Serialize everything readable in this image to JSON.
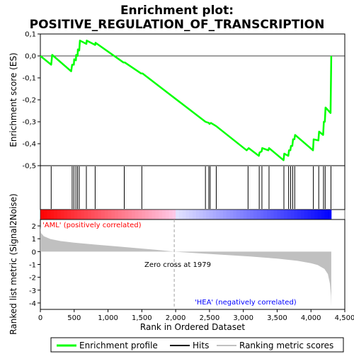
{
  "colors": {
    "enrichment": "#00ff00",
    "hits": "#000000",
    "metric_fill": "#c0c0c0",
    "positive_label": "#ff0000",
    "negative_label": "#0000ff",
    "zero_cross_line": "#a0a0a0"
  },
  "chart_data": {
    "type": "line",
    "title": "Enrichment plot: POSITIVE_REGULATION_OF_TRANSCRIPTION",
    "title_lines": [
      "Enrichment plot:",
      "POSITIVE_REGULATION_OF_TRANSCRIPTION"
    ],
    "xlabel": "Rank in Ordered Dataset",
    "xlim": [
      0,
      4500
    ],
    "x_ticks": [
      0,
      500,
      1000,
      1500,
      2000,
      2500,
      3000,
      3500,
      4000,
      4500
    ],
    "x_tick_labels": [
      "0",
      "500",
      "1,000",
      "1,500",
      "2,000",
      "2,500",
      "3,000",
      "3,500",
      "4,000",
      "4,500"
    ],
    "enrichment_panel": {
      "ylabel": "Enrichment score (ES)",
      "ylim": [
        -0.5,
        0.1
      ],
      "y_ticks": [
        0.1,
        0.0,
        -0.1,
        -0.2,
        -0.3,
        -0.4,
        -0.5
      ],
      "y_tick_labels": [
        "0,1",
        "0,0",
        "-0,1",
        "-0,2",
        "-0,3",
        "-0,4",
        "-0,5"
      ],
      "grid": "horizontal zero line"
    },
    "metric_panel": {
      "ylabel": "Ranked list metric (Signal2Noise)",
      "ylim": [
        -4.5,
        2.5
      ],
      "y_ticks": [
        2,
        1,
        0,
        -1,
        -2,
        -3,
        -4
      ],
      "y_tick_labels": [
        "2",
        "1",
        "0",
        "-1",
        "-2",
        "-3",
        "-4"
      ],
      "zero_cross_rank": 1979,
      "zero_cross_label": "Zero cross at 1979",
      "positive_label": "'AML' (positively correlated)",
      "negative_label": "'HEA' (negatively correlated)",
      "metric_curve": [
        [
          0,
          1.95
        ],
        [
          10,
          1.45
        ],
        [
          50,
          1.2
        ],
        [
          150,
          0.98
        ],
        [
          300,
          0.82
        ],
        [
          500,
          0.7
        ],
        [
          800,
          0.55
        ],
        [
          1100,
          0.42
        ],
        [
          1400,
          0.28
        ],
        [
          1700,
          0.14
        ],
        [
          1979,
          0.0
        ],
        [
          2300,
          -0.12
        ],
        [
          2700,
          -0.25
        ],
        [
          3100,
          -0.38
        ],
        [
          3500,
          -0.55
        ],
        [
          3800,
          -0.72
        ],
        [
          4000,
          -0.9
        ],
        [
          4100,
          -1.05
        ],
        [
          4200,
          -1.35
        ],
        [
          4250,
          -1.75
        ],
        [
          4280,
          -2.5
        ],
        [
          4295,
          -3.4
        ],
        [
          4300,
          -4.3
        ]
      ]
    },
    "series": [
      {
        "name": "Enrichment profile",
        "points": [
          [
            0,
            0.0
          ],
          [
            160,
            -0.04
          ],
          [
            175,
            0.005
          ],
          [
            455,
            -0.07
          ],
          [
            470,
            -0.04
          ],
          [
            495,
            -0.04
          ],
          [
            500,
            -0.015
          ],
          [
            525,
            -0.02
          ],
          [
            530,
            0.005
          ],
          [
            550,
            0.0
          ],
          [
            555,
            0.03
          ],
          [
            575,
            0.025
          ],
          [
            585,
            0.07
          ],
          [
            680,
            0.055
          ],
          [
            685,
            0.07
          ],
          [
            810,
            0.05
          ],
          [
            815,
            0.06
          ],
          [
            1230,
            -0.03
          ],
          [
            1250,
            -0.03
          ],
          [
            1490,
            -0.08
          ],
          [
            1510,
            -0.08
          ],
          [
            2440,
            -0.3
          ],
          [
            2490,
            -0.305
          ],
          [
            2500,
            -0.31
          ],
          [
            2520,
            -0.305
          ],
          [
            2600,
            -0.32
          ],
          [
            3050,
            -0.43
          ],
          [
            3080,
            -0.42
          ],
          [
            3230,
            -0.455
          ],
          [
            3240,
            -0.44
          ],
          [
            3270,
            -0.435
          ],
          [
            3280,
            -0.42
          ],
          [
            3370,
            -0.43
          ],
          [
            3380,
            -0.42
          ],
          [
            3595,
            -0.475
          ],
          [
            3605,
            -0.445
          ],
          [
            3665,
            -0.455
          ],
          [
            3675,
            -0.43
          ],
          [
            3695,
            -0.43
          ],
          [
            3705,
            -0.41
          ],
          [
            3725,
            -0.41
          ],
          [
            3735,
            -0.38
          ],
          [
            3755,
            -0.38
          ],
          [
            3765,
            -0.36
          ],
          [
            4030,
            -0.43
          ],
          [
            4040,
            -0.38
          ],
          [
            4110,
            -0.385
          ],
          [
            4120,
            -0.345
          ],
          [
            4180,
            -0.36
          ],
          [
            4190,
            -0.3
          ],
          [
            4205,
            -0.3
          ],
          [
            4215,
            -0.235
          ],
          [
            4290,
            -0.26
          ],
          [
            4295,
            -0.13
          ],
          [
            4300,
            0.0
          ]
        ]
      },
      {
        "name": "Hits",
        "ranks": [
          160,
          470,
          495,
          525,
          550,
          575,
          680,
          810,
          1240,
          1500,
          2440,
          2490,
          2510,
          2600,
          3070,
          3235,
          3275,
          3380,
          3600,
          3670,
          3700,
          3730,
          3760,
          4035,
          4115,
          4185,
          4210,
          4295
        ]
      },
      {
        "name": "Ranking metric scores"
      }
    ]
  },
  "legend": {
    "items": [
      {
        "label": "Enrichment profile",
        "swatch": "enrichment-line"
      },
      {
        "label": "Hits",
        "swatch": "hit-line"
      },
      {
        "label": "Ranking metric scores",
        "swatch": "metric-line"
      }
    ]
  }
}
